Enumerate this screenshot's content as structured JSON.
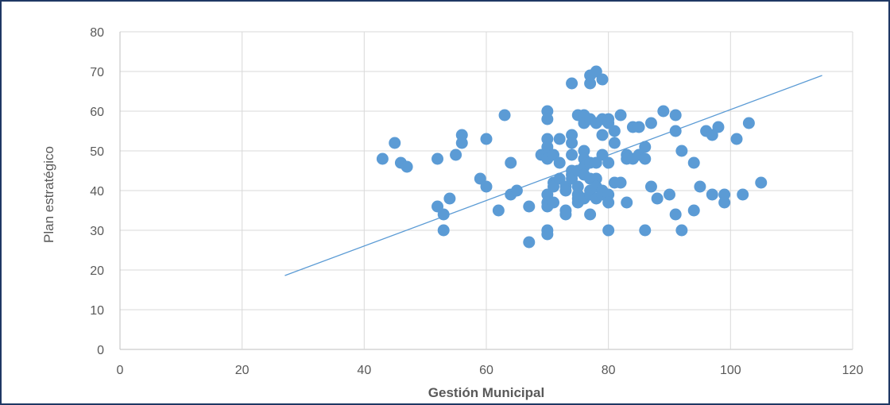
{
  "chart_data": {
    "type": "scatter",
    "title": "",
    "xlabel": "Gestión Municipal",
    "ylabel": "Plan estratégico",
    "xlim": [
      0,
      120
    ],
    "ylim": [
      0,
      80
    ],
    "xticks": [
      0,
      20,
      40,
      60,
      80,
      100,
      120
    ],
    "yticks": [
      0,
      10,
      20,
      30,
      40,
      50,
      60,
      70,
      80
    ],
    "grid": true,
    "legend": "none",
    "colors": {
      "points": "#5b9bd5",
      "trendline": "#5b9bd5",
      "grid": "#d9d9d9",
      "border": "#1f3864"
    },
    "trendline": {
      "type": "linear",
      "x": [
        27,
        115
      ],
      "y": [
        18.6,
        69
      ]
    },
    "points": [
      [
        43,
        48
      ],
      [
        45,
        52
      ],
      [
        46,
        47
      ],
      [
        47,
        46
      ],
      [
        52,
        48
      ],
      [
        52,
        36
      ],
      [
        53,
        34
      ],
      [
        53,
        30
      ],
      [
        54,
        38
      ],
      [
        55,
        49
      ],
      [
        56,
        52
      ],
      [
        56,
        54
      ],
      [
        59,
        43
      ],
      [
        60,
        41
      ],
      [
        60,
        53
      ],
      [
        62,
        35
      ],
      [
        63,
        59
      ],
      [
        64,
        47
      ],
      [
        64,
        39
      ],
      [
        65,
        40
      ],
      [
        67,
        36
      ],
      [
        67,
        27
      ],
      [
        69,
        49
      ],
      [
        70,
        60
      ],
      [
        70,
        58
      ],
      [
        70,
        53
      ],
      [
        70,
        51
      ],
      [
        70,
        49
      ],
      [
        70,
        48
      ],
      [
        70,
        39
      ],
      [
        70,
        37
      ],
      [
        70,
        36
      ],
      [
        70,
        30
      ],
      [
        70,
        29
      ],
      [
        71,
        49
      ],
      [
        71,
        42
      ],
      [
        71,
        41
      ],
      [
        71,
        37
      ],
      [
        72,
        53
      ],
      [
        72,
        47
      ],
      [
        72,
        43
      ],
      [
        73,
        41
      ],
      [
        73,
        40
      ],
      [
        73,
        35
      ],
      [
        73,
        34
      ],
      [
        74,
        67
      ],
      [
        74,
        54
      ],
      [
        74,
        52
      ],
      [
        74,
        49
      ],
      [
        74,
        45
      ],
      [
        74,
        44
      ],
      [
        74,
        43
      ],
      [
        75,
        59
      ],
      [
        75,
        45
      ],
      [
        75,
        41
      ],
      [
        75,
        39
      ],
      [
        75,
        38
      ],
      [
        75,
        37
      ],
      [
        76,
        59
      ],
      [
        76,
        57
      ],
      [
        76,
        50
      ],
      [
        76,
        48
      ],
      [
        76,
        46
      ],
      [
        76,
        44
      ],
      [
        76,
        38
      ],
      [
        77,
        69
      ],
      [
        77,
        67
      ],
      [
        77,
        58
      ],
      [
        77,
        47
      ],
      [
        77,
        43
      ],
      [
        77,
        40
      ],
      [
        77,
        39
      ],
      [
        77,
        34
      ],
      [
        78,
        70
      ],
      [
        78,
        57
      ],
      [
        78,
        47
      ],
      [
        78,
        43
      ],
      [
        78,
        41
      ],
      [
        78,
        38
      ],
      [
        79,
        68
      ],
      [
        79,
        58
      ],
      [
        79,
        54
      ],
      [
        79,
        49
      ],
      [
        79,
        40
      ],
      [
        79,
        39
      ],
      [
        80,
        58
      ],
      [
        80,
        57
      ],
      [
        80,
        47
      ],
      [
        80,
        39
      ],
      [
        80,
        37
      ],
      [
        80,
        30
      ],
      [
        81,
        55
      ],
      [
        81,
        52
      ],
      [
        81,
        42
      ],
      [
        82,
        59
      ],
      [
        82,
        42
      ],
      [
        83,
        49
      ],
      [
        83,
        48
      ],
      [
        83,
        37
      ],
      [
        84,
        56
      ],
      [
        84,
        48
      ],
      [
        85,
        56
      ],
      [
        85,
        49
      ],
      [
        86,
        51
      ],
      [
        86,
        48
      ],
      [
        86,
        30
      ],
      [
        87,
        57
      ],
      [
        87,
        41
      ],
      [
        88,
        38
      ],
      [
        89,
        60
      ],
      [
        90,
        39
      ],
      [
        91,
        59
      ],
      [
        91,
        55
      ],
      [
        91,
        34
      ],
      [
        92,
        50
      ],
      [
        92,
        30
      ],
      [
        94,
        47
      ],
      [
        94,
        35
      ],
      [
        95,
        41
      ],
      [
        96,
        55
      ],
      [
        97,
        54
      ],
      [
        97,
        39
      ],
      [
        98,
        56
      ],
      [
        99,
        39
      ],
      [
        99,
        37
      ],
      [
        101,
        53
      ],
      [
        102,
        39
      ],
      [
        103,
        57
      ],
      [
        105,
        42
      ]
    ]
  }
}
